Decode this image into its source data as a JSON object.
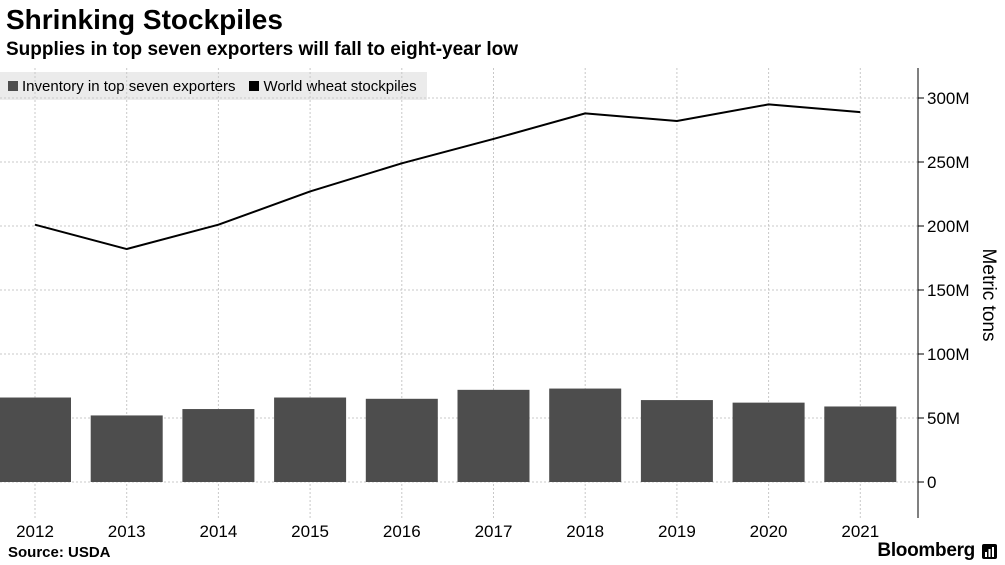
{
  "chart_data": {
    "type": "bar",
    "title": "Shrinking Stockpiles",
    "subtitle": "Supplies in top seven exporters will fall to eight-year low",
    "categories": [
      "2012",
      "2013",
      "2014",
      "2015",
      "2016",
      "2017",
      "2018",
      "2019",
      "2020",
      "2021"
    ],
    "series": [
      {
        "name": "Inventory in top seven exporters",
        "type": "bar",
        "color": "#4d4d4d",
        "values": [
          66,
          52,
          57,
          66,
          65,
          72,
          73,
          64,
          62,
          59
        ]
      },
      {
        "name": "World wheat stockpiles",
        "type": "line",
        "color": "#000000",
        "values": [
          201,
          182,
          201,
          227,
          249,
          268,
          288,
          282,
          295,
          289
        ]
      }
    ],
    "ylabel": "Metric tons",
    "ylim": [
      -27,
      323
    ],
    "yticks": [
      0,
      50,
      100,
      150,
      200,
      250,
      300
    ],
    "ytick_labels": [
      "0",
      "50M",
      "100M",
      "150M",
      "200M",
      "250M",
      "300M"
    ],
    "grid": true,
    "legend": "top-left",
    "y_axis_side": "right"
  },
  "footer": {
    "source": "Source: USDA",
    "brand": "Bloomberg"
  }
}
